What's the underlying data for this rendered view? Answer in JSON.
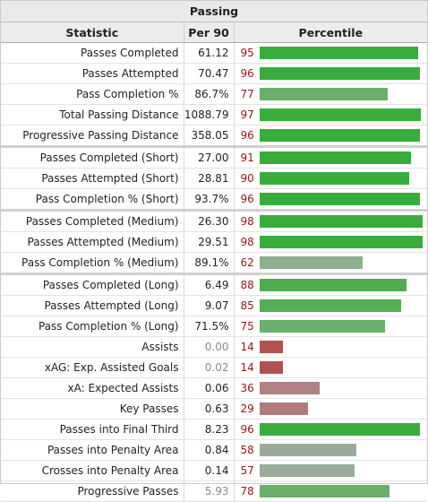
{
  "title": "Passing",
  "headers": {
    "stat": "Statistic",
    "per90": "Per 90",
    "percentile": "Percentile"
  },
  "rows": [
    {
      "stat": "Passes Completed",
      "per90": "61.12",
      "pct": 95,
      "color": "#38ad3b"
    },
    {
      "stat": "Passes Attempted",
      "per90": "70.47",
      "pct": 96,
      "color": "#38ad3b"
    },
    {
      "stat": "Pass Completion %",
      "per90": "86.7%",
      "pct": 77,
      "color": "#6aaf6a"
    },
    {
      "stat": "Total Passing Distance",
      "per90": "1088.79",
      "pct": 97,
      "color": "#38ad3b"
    },
    {
      "stat": "Progressive Passing Distance",
      "per90": "358.05",
      "pct": 96,
      "color": "#38ad3b"
    },
    {
      "stat": "Passes Completed (Short)",
      "per90": "27.00",
      "pct": 91,
      "color": "#38ad3b",
      "sep": true
    },
    {
      "stat": "Passes Attempted (Short)",
      "per90": "28.81",
      "pct": 90,
      "color": "#38ad3b"
    },
    {
      "stat": "Pass Completion % (Short)",
      "per90": "93.7%",
      "pct": 96,
      "color": "#38ad3b"
    },
    {
      "stat": "Passes Completed (Medium)",
      "per90": "26.30",
      "pct": 98,
      "color": "#38ad3b",
      "sep": true
    },
    {
      "stat": "Passes Attempted (Medium)",
      "per90": "29.51",
      "pct": 98,
      "color": "#38ad3b"
    },
    {
      "stat": "Pass Completion % (Medium)",
      "per90": "89.1%",
      "pct": 62,
      "color": "#8fb08f"
    },
    {
      "stat": "Passes Completed (Long)",
      "per90": "6.49",
      "pct": 88,
      "color": "#4fac4f",
      "sep": true
    },
    {
      "stat": "Passes Attempted (Long)",
      "per90": "9.07",
      "pct": 85,
      "color": "#55ad55"
    },
    {
      "stat": "Pass Completion % (Long)",
      "per90": "71.5%",
      "pct": 75,
      "color": "#6aaf6a"
    },
    {
      "stat": "Assists",
      "per90": "0.00",
      "pct": 14,
      "color": "#b05252",
      "dim": true
    },
    {
      "stat": "xAG: Exp. Assisted Goals",
      "per90": "0.02",
      "pct": 14,
      "color": "#b05252",
      "dim": true
    },
    {
      "stat": "xA: Expected Assists",
      "per90": "0.06",
      "pct": 36,
      "color": "#b08282"
    },
    {
      "stat": "Key Passes",
      "per90": "0.63",
      "pct": 29,
      "color": "#b07b7b"
    },
    {
      "stat": "Passes into Final Third",
      "per90": "8.23",
      "pct": 96,
      "color": "#38ad3b"
    },
    {
      "stat": "Passes into Penalty Area",
      "per90": "0.84",
      "pct": 58,
      "color": "#9aab9a"
    },
    {
      "stat": "Crosses into Penalty Area",
      "per90": "0.14",
      "pct": 57,
      "color": "#9aab9a"
    },
    {
      "stat": "Progressive Passes",
      "per90": "5.93",
      "pct": 78,
      "color": "#6aaf6a",
      "dim": true
    }
  ]
}
